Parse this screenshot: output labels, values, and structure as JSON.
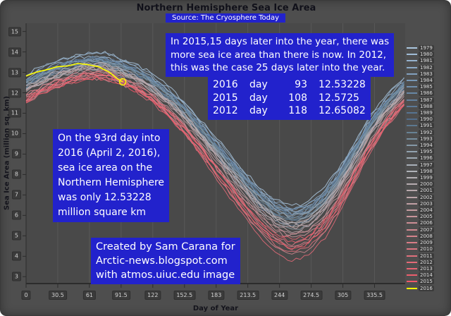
{
  "colors": {
    "frame_bg": "#4e4e4e",
    "plot_bg": "#494949",
    "annotation_bg": "#2222cc",
    "tick_box_bg": "#3b3b3b",
    "grid_line": "#585858",
    "axis_line": "#2c2c2c",
    "highlight_2016": "#ffff00"
  },
  "annotations": {
    "note_top": {
      "lines": [
        "In 2015,15 days later into the year, there was",
        "more sea ice area than there is now. In 2012,",
        "this was the case 25 days later into the year."
      ]
    },
    "table": {
      "rows": [
        [
          "2016",
          "day",
          "93",
          "12.53228"
        ],
        [
          "2015",
          "day",
          "108",
          "12.5725"
        ],
        [
          "2012",
          "day",
          "118",
          "12.65082"
        ]
      ]
    },
    "note_left": {
      "lines": [
        "On the 93rd day into",
        "2016 (April 2, 2016),",
        "sea ice area on the",
        "Northern Hemisphere",
        "was only 12.53228",
        "million square km"
      ]
    },
    "credit": {
      "lines": [
        "Created by Sam Carana for",
        "Arctic-news.blogspot.com",
        "with atmos.uiuc.edu image"
      ]
    }
  },
  "chart_data": {
    "type": "line",
    "title": "Northern Hemisphere Sea Ice Area",
    "source": "Source: The Cryosphere Today",
    "xlabel": "Day of Year",
    "ylabel": "Sea Ice Area (million sq. km)",
    "xlim": [
      0,
      365
    ],
    "ylim": [
      2.7,
      15.4
    ],
    "x_ticks": [
      0,
      30.5,
      61,
      91.5,
      122,
      152.5,
      183,
      213.5,
      244,
      274.5,
      305,
      335.5
    ],
    "y_ticks": [
      15,
      14,
      13,
      12,
      11,
      10,
      9,
      8,
      7,
      6,
      5,
      4,
      3
    ],
    "grid": true,
    "legend_position": "right",
    "units": "million sq. km",
    "template_days": [
      0,
      15,
      30,
      45,
      60,
      75,
      90,
      105,
      120,
      135,
      150,
      165,
      180,
      195,
      210,
      225,
      240,
      255,
      270,
      285,
      300,
      315,
      330,
      345,
      365
    ],
    "template_t": [
      0.86,
      0.91,
      0.95,
      0.98,
      1.0,
      1.0,
      0.97,
      0.93,
      0.87,
      0.79,
      0.7,
      0.59,
      0.47,
      0.35,
      0.23,
      0.12,
      0.04,
      0.0,
      0.02,
      0.1,
      0.23,
      0.4,
      0.57,
      0.71,
      0.85
    ],
    "series": [
      {
        "year": "1979",
        "color": "#aac6de",
        "max": 13.95,
        "min": 6.45
      },
      {
        "year": "1980",
        "color": "#a0bcd6",
        "max": 13.8,
        "min": 6.2
      },
      {
        "year": "1981",
        "color": "#96b2ce",
        "max": 13.6,
        "min": 6.1
      },
      {
        "year": "1982",
        "color": "#8caac6",
        "max": 13.9,
        "min": 6.35
      },
      {
        "year": "1983",
        "color": "#82a0be",
        "max": 13.7,
        "min": 6.3
      },
      {
        "year": "1984",
        "color": "#7898b6",
        "max": 13.5,
        "min": 5.95
      },
      {
        "year": "1985",
        "color": "#7090ae",
        "max": 13.6,
        "min": 6.05
      },
      {
        "year": "1986",
        "color": "#6888a6",
        "max": 13.6,
        "min": 6.25
      },
      {
        "year": "1987",
        "color": "#62809e",
        "max": 13.7,
        "min": 5.95
      },
      {
        "year": "1988",
        "color": "#5c7a98",
        "max": 13.7,
        "min": 6.1
      },
      {
        "year": "1989",
        "color": "#567492",
        "max": 13.4,
        "min": 5.8
      },
      {
        "year": "1990",
        "color": "#526e8c",
        "max": 13.4,
        "min": 5.5
      },
      {
        "year": "1991",
        "color": "#5c7890",
        "max": 13.4,
        "min": 5.7
      },
      {
        "year": "1992",
        "color": "#688294",
        "max": 13.5,
        "min": 6.1
      },
      {
        "year": "1993",
        "color": "#768e9e",
        "max": 13.6,
        "min": 5.8
      },
      {
        "year": "1994",
        "color": "#8498a6",
        "max": 13.55,
        "min": 5.9
      },
      {
        "year": "1995",
        "color": "#92a2ae",
        "max": 13.3,
        "min": 5.3
      },
      {
        "year": "1996",
        "color": "#9eaab4",
        "max": 13.1,
        "min": 6.0
      },
      {
        "year": "1997",
        "color": "#a8b0b8",
        "max": 13.3,
        "min": 5.65
      },
      {
        "year": "1998",
        "color": "#b0b2b8",
        "max": 13.4,
        "min": 5.6
      },
      {
        "year": "1999",
        "color": "#b4b0b4",
        "max": 13.3,
        "min": 5.5
      },
      {
        "year": "2000",
        "color": "#b6acb0",
        "max": 13.2,
        "min": 5.5
      },
      {
        "year": "2001",
        "color": "#b8a8ac",
        "max": 13.4,
        "min": 5.6
      },
      {
        "year": "2002",
        "color": "#bca4a8",
        "max": 13.2,
        "min": 5.2
      },
      {
        "year": "2003",
        "color": "#c0a0a4",
        "max": 13.3,
        "min": 5.35
      },
      {
        "year": "2004",
        "color": "#c49a9f",
        "max": 13.0,
        "min": 5.1
      },
      {
        "year": "2005",
        "color": "#c8949a",
        "max": 12.9,
        "min": 4.9
      },
      {
        "year": "2006",
        "color": "#cc8e95",
        "max": 12.7,
        "min": 5.0
      },
      {
        "year": "2007",
        "color": "#d08890",
        "max": 12.9,
        "min": 4.1
      },
      {
        "year": "2008",
        "color": "#d4828b",
        "max": 13.1,
        "min": 4.5
      },
      {
        "year": "2009",
        "color": "#d87c86",
        "max": 13.0,
        "min": 4.6
      },
      {
        "year": "2010",
        "color": "#dc7681",
        "max": 12.8,
        "min": 4.4
      },
      {
        "year": "2011",
        "color": "#e0707c",
        "max": 12.7,
        "min": 4.2
      },
      {
        "year": "2012",
        "color": "#e46a77",
        "max": 12.9,
        "min": 3.8
      },
      {
        "year": "2013",
        "color": "#e86472",
        "max": 12.8,
        "min": 4.8
      },
      {
        "year": "2014",
        "color": "#ec5e6d",
        "max": 12.9,
        "min": 4.7
      },
      {
        "year": "2015",
        "color": "#f05868",
        "max": 12.7,
        "min": 4.4
      },
      {
        "year": "2016",
        "color": "#ffff00",
        "partial": true,
        "points_days": [
          0,
          10,
          20,
          30,
          40,
          50,
          60,
          70,
          80,
          88,
          93
        ],
        "points_values": [
          12.85,
          13.0,
          13.1,
          13.3,
          13.35,
          13.45,
          13.4,
          13.3,
          13.05,
          12.7,
          12.53228
        ]
      }
    ],
    "highlight": {
      "year": "2016",
      "day": 93,
      "value": 12.53228
    }
  }
}
